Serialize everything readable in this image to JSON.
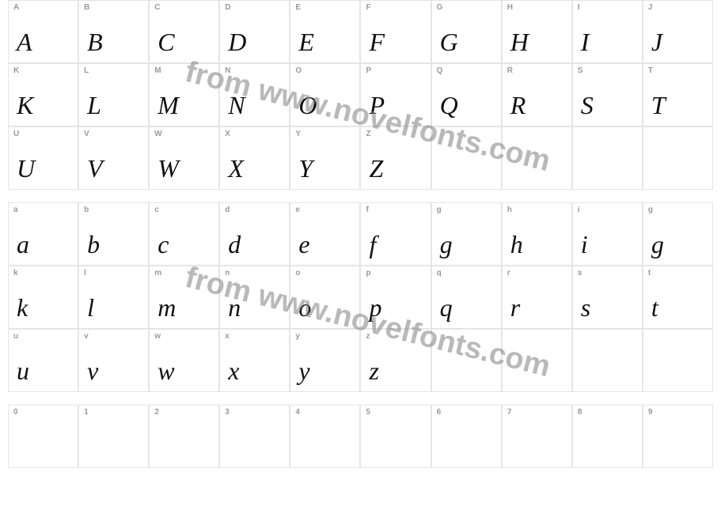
{
  "grid": {
    "cell_border_color": "#e5e5e5",
    "corner_label_color": "#9a9a9a",
    "corner_label_fontsize": 10,
    "glyph_color": "#111111",
    "glyph_fontsize": 32,
    "background_color": "#ffffff",
    "columns": 10
  },
  "watermark": {
    "text": "from www.novelfonts.com",
    "color": "#808080",
    "opacity": 0.55,
    "fontsize": 38,
    "rotation_deg": 14
  },
  "sections": {
    "upper": {
      "rows": [
        [
          {
            "label": "A",
            "glyph": "A"
          },
          {
            "label": "B",
            "glyph": "B"
          },
          {
            "label": "C",
            "glyph": "C"
          },
          {
            "label": "D",
            "glyph": "D"
          },
          {
            "label": "E",
            "glyph": "E"
          },
          {
            "label": "F",
            "glyph": "F"
          },
          {
            "label": "G",
            "glyph": "G"
          },
          {
            "label": "H",
            "glyph": "H"
          },
          {
            "label": "I",
            "glyph": "I"
          },
          {
            "label": "J",
            "glyph": "J"
          }
        ],
        [
          {
            "label": "K",
            "glyph": "K"
          },
          {
            "label": "L",
            "glyph": "L"
          },
          {
            "label": "M",
            "glyph": "M"
          },
          {
            "label": "N",
            "glyph": "N"
          },
          {
            "label": "O",
            "glyph": "O"
          },
          {
            "label": "P",
            "glyph": "P"
          },
          {
            "label": "Q",
            "glyph": "Q"
          },
          {
            "label": "R",
            "glyph": "R"
          },
          {
            "label": "S",
            "glyph": "S"
          },
          {
            "label": "T",
            "glyph": "T"
          }
        ],
        [
          {
            "label": "U",
            "glyph": "U"
          },
          {
            "label": "V",
            "glyph": "V"
          },
          {
            "label": "W",
            "glyph": "W"
          },
          {
            "label": "X",
            "glyph": "X"
          },
          {
            "label": "Y",
            "glyph": "Y"
          },
          {
            "label": "Z",
            "glyph": "Z"
          },
          {
            "label": "",
            "glyph": ""
          },
          {
            "label": "",
            "glyph": ""
          },
          {
            "label": "",
            "glyph": ""
          },
          {
            "label": "",
            "glyph": ""
          }
        ]
      ]
    },
    "lower": {
      "rows": [
        [
          {
            "label": "a",
            "glyph": "a"
          },
          {
            "label": "b",
            "glyph": "b"
          },
          {
            "label": "c",
            "glyph": "c"
          },
          {
            "label": "d",
            "glyph": "d"
          },
          {
            "label": "e",
            "glyph": "e"
          },
          {
            "label": "f",
            "glyph": "f"
          },
          {
            "label": "g",
            "glyph": "g"
          },
          {
            "label": "h",
            "glyph": "h"
          },
          {
            "label": "i",
            "glyph": "i"
          },
          {
            "label": "g",
            "glyph": "g"
          }
        ],
        [
          {
            "label": "k",
            "glyph": "k"
          },
          {
            "label": "l",
            "glyph": "l"
          },
          {
            "label": "m",
            "glyph": "m"
          },
          {
            "label": "n",
            "glyph": "n"
          },
          {
            "label": "o",
            "glyph": "o"
          },
          {
            "label": "p",
            "glyph": "p"
          },
          {
            "label": "q",
            "glyph": "q"
          },
          {
            "label": "r",
            "glyph": "r"
          },
          {
            "label": "s",
            "glyph": "s"
          },
          {
            "label": "t",
            "glyph": "t"
          }
        ],
        [
          {
            "label": "u",
            "glyph": "u"
          },
          {
            "label": "v",
            "glyph": "v"
          },
          {
            "label": "w",
            "glyph": "w"
          },
          {
            "label": "x",
            "glyph": "x"
          },
          {
            "label": "y",
            "glyph": "y"
          },
          {
            "label": "z",
            "glyph": "z"
          },
          {
            "label": "",
            "glyph": ""
          },
          {
            "label": "",
            "glyph": ""
          },
          {
            "label": "",
            "glyph": ""
          },
          {
            "label": "",
            "glyph": ""
          }
        ]
      ]
    },
    "digits": {
      "rows": [
        [
          {
            "label": "0",
            "glyph": ""
          },
          {
            "label": "1",
            "glyph": ""
          },
          {
            "label": "2",
            "glyph": ""
          },
          {
            "label": "3",
            "glyph": ""
          },
          {
            "label": "4",
            "glyph": ""
          },
          {
            "label": "5",
            "glyph": ""
          },
          {
            "label": "6",
            "glyph": ""
          },
          {
            "label": "7",
            "glyph": ""
          },
          {
            "label": "8",
            "glyph": ""
          },
          {
            "label": "9",
            "glyph": ""
          }
        ]
      ]
    }
  }
}
